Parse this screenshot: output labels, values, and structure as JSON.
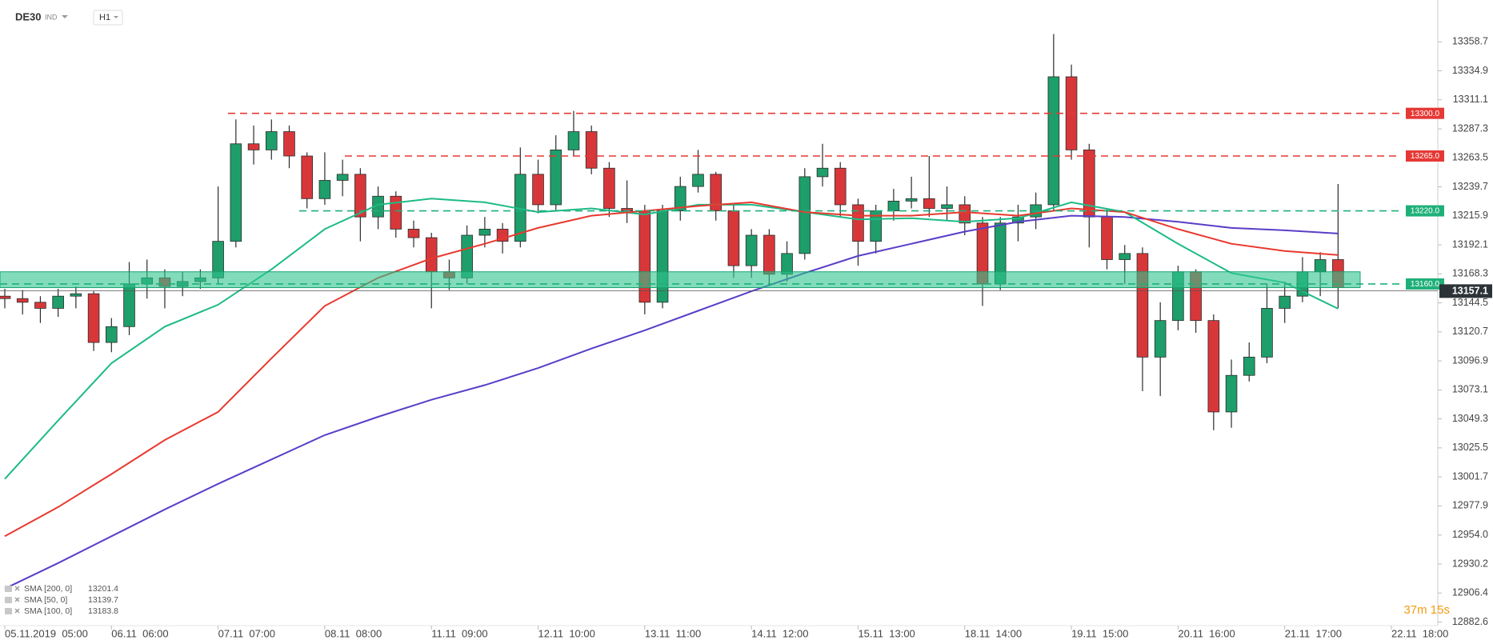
{
  "header": {
    "symbol": "DE30",
    "market": "IND",
    "interval": "H1"
  },
  "chart_data": {
    "type": "candlestick",
    "x": [
      0,
      4,
      8,
      12,
      16,
      20,
      24,
      28,
      32,
      36,
      40,
      44,
      48,
      52,
      56,
      60,
      64,
      68,
      72,
      76,
      80,
      84,
      88,
      92,
      96,
      100,
      104,
      108,
      112,
      116,
      120,
      124,
      128,
      132,
      136,
      140,
      144,
      148,
      152,
      156,
      160,
      164,
      168,
      172,
      176,
      180,
      184,
      188,
      192,
      196,
      200,
      204,
      208,
      212,
      216,
      220,
      224,
      228,
      232,
      236,
      240,
      244,
      248,
      252,
      256,
      260,
      264,
      268,
      272,
      276,
      280,
      284,
      288,
      292,
      296,
      300
    ],
    "open": [
      13150,
      13148,
      13145,
      13140,
      13150,
      13152,
      13112,
      13125,
      13160,
      13165,
      13158,
      13162,
      13165,
      13195,
      13275,
      13270,
      13285,
      13265,
      13230,
      13245,
      13250,
      13215,
      13232,
      13205,
      13198,
      13170,
      13165,
      13200,
      13205,
      13195,
      13250,
      13225,
      13270,
      13285,
      13255,
      13222,
      13220,
      13145,
      13220,
      13240,
      13250,
      13220,
      13175,
      13200,
      13168,
      13185,
      13248,
      13255,
      13225,
      13195,
      13220,
      13228,
      13230,
      13222,
      13225,
      13210,
      13160,
      13210,
      13215,
      13225,
      13330,
      13270,
      13215,
      13180,
      13185,
      13100,
      13130,
      13170,
      13130,
      13055,
      13085,
      13100,
      13140,
      13150,
      13170,
      13180
    ],
    "high": [
      13156,
      13155,
      13150,
      13156,
      13158,
      13154,
      13132,
      13178,
      13180,
      13172,
      13170,
      13172,
      13240,
      13295,
      13290,
      13295,
      13290,
      13268,
      13268,
      13262,
      13255,
      13240,
      13236,
      13212,
      13202,
      13180,
      13208,
      13215,
      13210,
      13272,
      13262,
      13282,
      13302,
      13290,
      13260,
      13245,
      13225,
      13225,
      13248,
      13270,
      13252,
      13225,
      13205,
      13205,
      13195,
      13255,
      13275,
      13260,
      13230,
      13225,
      13238,
      13248,
      13265,
      13240,
      13232,
      13215,
      13215,
      13225,
      13235,
      13365,
      13340,
      13275,
      13222,
      13192,
      13190,
      13145,
      13175,
      13172,
      13135,
      13098,
      13112,
      13160,
      13162,
      13182,
      13186,
      13242
    ],
    "low": [
      13140,
      13135,
      13128,
      13133,
      13140,
      13105,
      13104,
      13118,
      13148,
      13140,
      13150,
      13156,
      13160,
      13190,
      13258,
      13262,
      13255,
      13222,
      13225,
      13232,
      13195,
      13205,
      13198,
      13190,
      13140,
      13155,
      13160,
      13190,
      13185,
      13190,
      13218,
      13220,
      13265,
      13250,
      13215,
      13210,
      13135,
      13140,
      13212,
      13235,
      13212,
      13165,
      13165,
      13160,
      13162,
      13180,
      13240,
      13215,
      13175,
      13185,
      13212,
      13222,
      13215,
      13212,
      13200,
      13142,
      13155,
      13195,
      13205,
      13220,
      13262,
      13190,
      13172,
      13160,
      13072,
      13068,
      13122,
      13120,
      13040,
      13042,
      13080,
      13095,
      13128,
      13145,
      13150,
      13140
    ],
    "close": [
      13148,
      13145,
      13140,
      13150,
      13152,
      13112,
      13125,
      13160,
      13165,
      13158,
      13162,
      13165,
      13195,
      13275,
      13270,
      13285,
      13265,
      13230,
      13245,
      13250,
      13215,
      13232,
      13205,
      13198,
      13170,
      13165,
      13200,
      13205,
      13195,
      13250,
      13225,
      13270,
      13285,
      13255,
      13222,
      13220,
      13145,
      13220,
      13240,
      13250,
      13220,
      13175,
      13200,
      13168,
      13185,
      13248,
      13255,
      13225,
      13195,
      13220,
      13228,
      13230,
      13222,
      13225,
      13210,
      13160,
      13210,
      13215,
      13225,
      13330,
      13270,
      13215,
      13180,
      13185,
      13100,
      13130,
      13170,
      13130,
      13055,
      13085,
      13100,
      13140,
      13150,
      13170,
      13180,
      13157.1
    ],
    "colors": {
      "up": "#1e9e6a",
      "down": "#d8373a",
      "wick": "#2b2b2b"
    },
    "xlim": [
      0,
      312
    ],
    "xticks": [
      {
        "value": 0,
        "label": "05.11.2019  05:00"
      },
      {
        "value": 24,
        "label": "06.11  06:00"
      },
      {
        "value": 48,
        "label": "07.11  07:00"
      },
      {
        "value": 72,
        "label": "08.11  08:00"
      },
      {
        "value": 96,
        "label": "11.11  09:00"
      },
      {
        "value": 120,
        "label": "12.11  10:00"
      },
      {
        "value": 144,
        "label": "13.11  11:00"
      },
      {
        "value": 168,
        "label": "14.11  12:00"
      },
      {
        "value": 192,
        "label": "15.11  13:00"
      },
      {
        "value": 216,
        "label": "18.11  14:00"
      },
      {
        "value": 240,
        "label": "19.11  15:00"
      },
      {
        "value": 264,
        "label": "20.11  16:00"
      },
      {
        "value": 288,
        "label": "21.11  17:00"
      },
      {
        "value": 312,
        "label": "22.11  18:00"
      }
    ],
    "ylim": [
      12881,
      13393
    ],
    "yticks": [
      13358.7,
      13334.9,
      13311.1,
      13287.3,
      13263.5,
      13239.7,
      13215.9,
      13192.1,
      13168.3,
      13144.5,
      13120.7,
      13096.9,
      13073.1,
      13049.3,
      13025.5,
      13001.7,
      12977.9,
      {
        "value": 12954,
        "label": "12954.0"
      },
      12930.2,
      12906.4,
      12882.6
    ],
    "overlay_x": [
      0,
      12,
      24,
      36,
      48,
      60,
      72,
      84,
      96,
      108,
      120,
      132,
      144,
      156,
      168,
      180,
      192,
      204,
      216,
      228,
      240,
      252,
      264,
      276,
      288,
      300
    ],
    "overlays": [
      {
        "name": "SMA [200, 0]",
        "last": 13201.4,
        "color": "#5a3ec8",
        "values": [
          12910,
          12931,
          12953,
          12975,
          12996,
          13016,
          13036,
          13051,
          13065,
          13077,
          13091,
          13107,
          13122,
          13138,
          13154,
          13169,
          13183,
          13193,
          13203,
          13211,
          13216,
          13215,
          13211,
          13206,
          13204,
          13201.4
        ]
      },
      {
        "name": "SMA [50, 0]",
        "last": 13139.7,
        "color": "#1dbb86",
        "values": [
          13000,
          13048,
          13095,
          13125,
          13143,
          13172,
          13205,
          13225,
          13230,
          13227,
          13219,
          13222,
          13217,
          13225,
          13225,
          13219,
          13213,
          13214,
          13211,
          13214,
          13227,
          13219,
          13193,
          13169,
          13161,
          13139.7
        ]
      },
      {
        "name": "SMA [100, 0]",
        "last": 13183.8,
        "color": "#e8392f",
        "values": [
          12953,
          12977,
          13004,
          13032,
          13055,
          13099,
          13142,
          13165,
          13181,
          13193,
          13206,
          13216,
          13220,
          13224,
          13227,
          13219,
          13216,
          13216,
          13219,
          13216,
          13222,
          13219,
          13205,
          13193,
          13187,
          13183.8
        ]
      }
    ],
    "levels": [
      {
        "value": 13300,
        "label": "13300.0",
        "color": "#e53935"
      },
      {
        "value": 13265,
        "label": "13265.0",
        "color": "#e53935"
      },
      {
        "value": 13220,
        "label": "13220.0",
        "color": "#1fb07a"
      },
      {
        "value": 13160,
        "label": "13160.0",
        "color": "#1fb07a"
      }
    ],
    "zone": {
      "range": [
        13157,
        13170
      ],
      "color": "#2ec48d"
    },
    "price_label": 13157.1,
    "timer": "37m 15s"
  }
}
